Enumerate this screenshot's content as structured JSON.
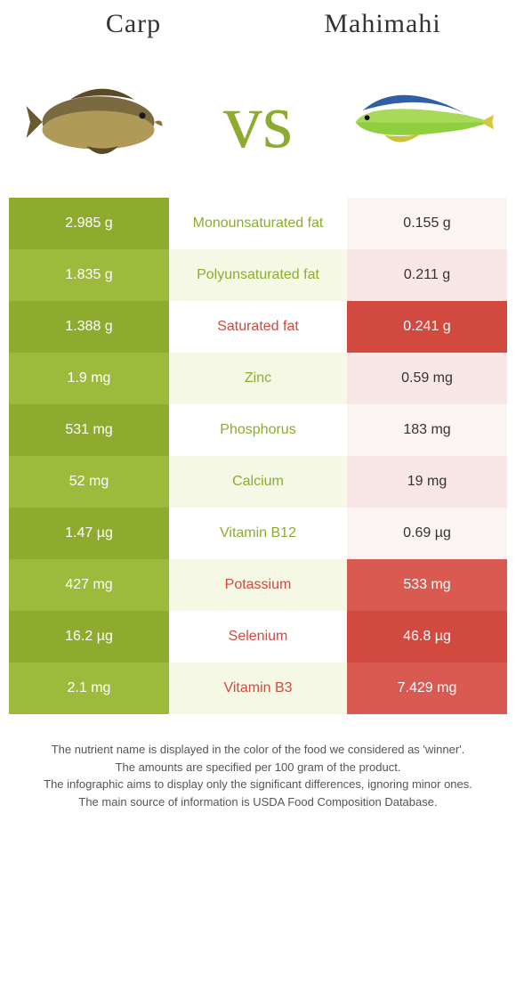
{
  "header": {
    "left_title": "Carp",
    "right_title": "Mahimahi",
    "vs_text": "vs"
  },
  "colors": {
    "green_dark": "#8dac2f",
    "green_light": "#9cbb3c",
    "red_dark": "#d2493f",
    "red_light": "#d85a50",
    "green_bg_alt": "#f4f8e5",
    "red_bg_a": "#fcf4f3",
    "red_bg_b": "#f8e7e5"
  },
  "rows": [
    {
      "left": "2.985 g",
      "label": "Monounsaturated fat",
      "right": "0.155 g",
      "winner": "left"
    },
    {
      "left": "1.835 g",
      "label": "Polyunsaturated fat",
      "right": "0.211 g",
      "winner": "left"
    },
    {
      "left": "1.388 g",
      "label": "Saturated fat",
      "right": "0.241 g",
      "winner": "right"
    },
    {
      "left": "1.9 mg",
      "label": "Zinc",
      "right": "0.59 mg",
      "winner": "left"
    },
    {
      "left": "531 mg",
      "label": "Phosphorus",
      "right": "183 mg",
      "winner": "left"
    },
    {
      "left": "52 mg",
      "label": "Calcium",
      "right": "19 mg",
      "winner": "left"
    },
    {
      "left": "1.47 µg",
      "label": "Vitamin B12",
      "right": "0.69 µg",
      "winner": "left"
    },
    {
      "left": "427 mg",
      "label": "Potassium",
      "right": "533 mg",
      "winner": "right"
    },
    {
      "left": "16.2 µg",
      "label": "Selenium",
      "right": "46.8 µg",
      "winner": "right"
    },
    {
      "left": "2.1 mg",
      "label": "Vitamin B3",
      "right": "7.429 mg",
      "winner": "right"
    }
  ],
  "footer": {
    "line1": "The nutrient name is displayed in the color of the food we considered as 'winner'.",
    "line2": "The amounts are specified per 100 gram of the product.",
    "line3": "The infographic aims to display only the significant differences, ignoring minor ones.",
    "line4": "The main source of information is USDA Food Composition Database."
  }
}
